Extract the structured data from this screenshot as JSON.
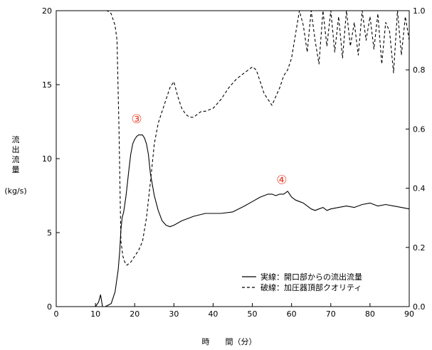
{
  "chart_data": {
    "type": "line",
    "xlabel": "時　　間（分）",
    "ylabel_lines": [
      "流",
      "出",
      "流",
      "量"
    ],
    "ylabel_unit": "(kg/s)",
    "xlim": [
      0,
      90
    ],
    "ylim": [
      0,
      20
    ],
    "y2lim": [
      0,
      1.0
    ],
    "x_ticks": [
      "0",
      "10",
      "20",
      "30",
      "40",
      "50",
      "60",
      "70",
      "80",
      "90"
    ],
    "y_ticks": [
      "0",
      "5",
      "10",
      "15",
      "20"
    ],
    "y2_ticks": [
      "0.0",
      "0.2",
      "0.4",
      "0.6",
      "0.8",
      "1.0"
    ],
    "grid": false,
    "legend_position": "bottom-right",
    "annotations": [
      {
        "text": "③",
        "x": 20.5,
        "y": 12.4
      },
      {
        "text": "④",
        "x": 57.5,
        "y": 8.3
      }
    ],
    "series": [
      {
        "name": "実線：開口部からの流出流量",
        "axis": "left",
        "style": "solid",
        "x": [
          0,
          10,
          10.8,
          11.3,
          11.8,
          12.5,
          14,
          15,
          15.8,
          16.2,
          16.5,
          16.8,
          17.2,
          17.8,
          18.5,
          19,
          19.5,
          20,
          20.5,
          21,
          21.5,
          22,
          22.5,
          23,
          23.5,
          24,
          25,
          26,
          27,
          28,
          29,
          30,
          32,
          35,
          38,
          40,
          42,
          45,
          48,
          50,
          52,
          54,
          55,
          56,
          57,
          58,
          59,
          60,
          61,
          62,
          63,
          64,
          65,
          66,
          67,
          68,
          69,
          70,
          72,
          74,
          76,
          78,
          80,
          82,
          84,
          86,
          88,
          90
        ],
        "y": [
          0,
          0,
          0.3,
          0.8,
          0,
          0,
          0.2,
          1.0,
          2.5,
          3.8,
          5.2,
          6.0,
          6.4,
          7.5,
          9.2,
          10.3,
          11.0,
          11.3,
          11.5,
          11.6,
          11.6,
          11.6,
          11.4,
          11.0,
          10.3,
          9.0,
          7.5,
          6.5,
          5.8,
          5.5,
          5.4,
          5.5,
          5.8,
          6.1,
          6.3,
          6.3,
          6.3,
          6.4,
          6.8,
          7.1,
          7.4,
          7.6,
          7.6,
          7.5,
          7.6,
          7.6,
          7.8,
          7.4,
          7.2,
          7.1,
          7.0,
          6.8,
          6.6,
          6.5,
          6.6,
          6.7,
          6.5,
          6.6,
          6.7,
          6.8,
          6.7,
          6.9,
          7.0,
          6.8,
          6.9,
          6.8,
          6.7,
          6.6
        ]
      },
      {
        "name": "破線：加圧器頂部クオリティ",
        "axis": "right",
        "style": "dashed",
        "x": [
          0,
          5,
          10,
          13,
          14,
          14.5,
          15,
          15.5,
          16,
          16.5,
          17,
          17.5,
          18,
          19,
          20,
          21,
          22,
          23,
          24,
          25,
          26,
          27,
          28,
          29,
          30,
          31,
          32,
          33,
          34,
          35,
          36,
          37,
          38,
          40,
          42,
          44,
          46,
          48,
          50,
          51,
          52,
          53,
          54,
          55,
          56,
          57,
          58,
          59,
          60,
          61,
          62,
          63,
          64,
          65,
          66,
          67,
          68,
          69,
          70,
          71,
          72,
          73,
          74,
          75,
          76,
          77,
          78,
          79,
          80,
          81,
          82,
          83,
          84,
          85,
          86,
          87,
          88,
          89,
          90
        ],
        "y": [
          1.0,
          1.0,
          1.0,
          1.0,
          0.99,
          0.97,
          0.95,
          0.9,
          0.6,
          0.22,
          0.17,
          0.15,
          0.14,
          0.15,
          0.17,
          0.19,
          0.22,
          0.3,
          0.42,
          0.55,
          0.62,
          0.66,
          0.7,
          0.74,
          0.76,
          0.71,
          0.67,
          0.65,
          0.64,
          0.64,
          0.65,
          0.66,
          0.66,
          0.67,
          0.7,
          0.74,
          0.77,
          0.79,
          0.81,
          0.8,
          0.76,
          0.72,
          0.7,
          0.68,
          0.71,
          0.74,
          0.78,
          0.8,
          0.84,
          0.92,
          1.0,
          0.95,
          0.86,
          1.0,
          0.9,
          0.82,
          1.0,
          0.88,
          1.0,
          0.86,
          0.98,
          0.84,
          1.0,
          0.88,
          0.96,
          0.85,
          1.0,
          0.9,
          0.98,
          0.87,
          0.99,
          0.82,
          0.96,
          0.93,
          0.79,
          1.0,
          0.85,
          0.98,
          0.9
        ]
      }
    ]
  }
}
